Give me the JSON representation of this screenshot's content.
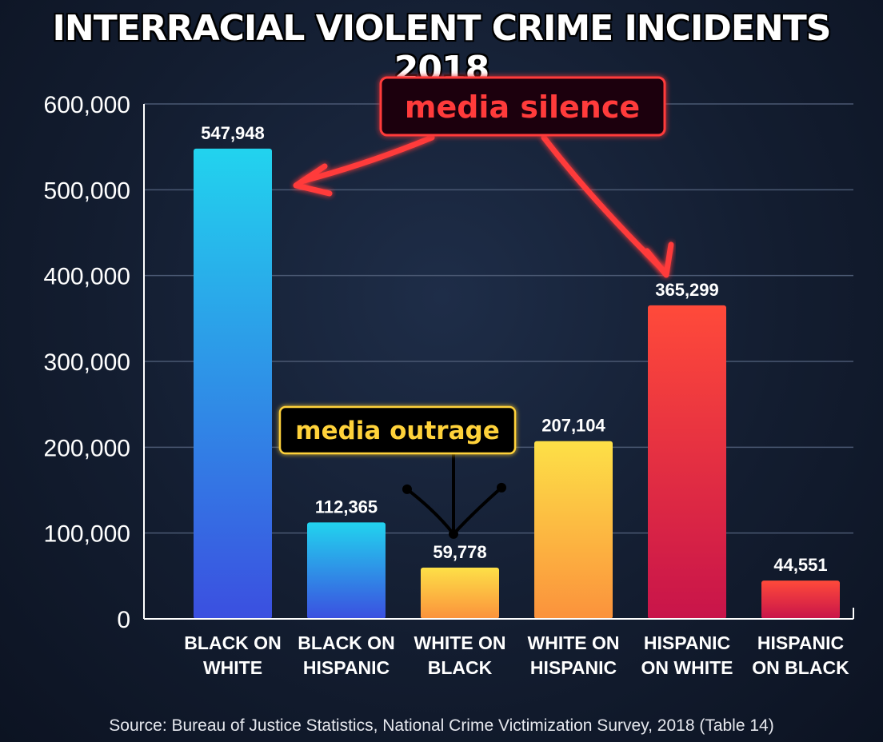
{
  "chart_data": {
    "type": "bar",
    "title": "INTERRACIAL VIOLENT CRIME INCIDENTS 2018",
    "categories": [
      [
        "BLACK ON",
        "WHITE"
      ],
      [
        "BLACK ON",
        "HISPANIC"
      ],
      [
        "WHITE ON",
        "BLACK"
      ],
      [
        "WHITE ON",
        "HISPANIC"
      ],
      [
        "HISPANIC",
        "ON WHITE"
      ],
      [
        "HISPANIC",
        "ON BLACK"
      ]
    ],
    "values": [
      547948,
      112365,
      59778,
      207104,
      365299,
      44551
    ],
    "value_labels": [
      "547,948",
      "112,365",
      "59,778",
      "207,104",
      "365,299",
      "44,551"
    ],
    "ylim": [
      0,
      600000
    ],
    "yticks": [
      0,
      100000,
      200000,
      300000,
      400000,
      500000,
      600000
    ],
    "ytick_labels": [
      "0",
      "100,000",
      "200,000",
      "300,000",
      "400,000",
      "500,000",
      "600,000"
    ],
    "xlabel": "",
    "ylabel": "",
    "grid": true,
    "legend": "none",
    "bar_colors": [
      [
        "#22d3ee",
        "#3b4fe0"
      ],
      [
        "#22d3ee",
        "#3b4fe0"
      ],
      [
        "#fde047",
        "#fb923c"
      ],
      [
        "#fde047",
        "#fb923c"
      ],
      [
        "#ff4a3a",
        "#c8144a"
      ],
      [
        "#ff4a3a",
        "#c8144a"
      ]
    ],
    "annotations": [
      {
        "text": "media silence",
        "color": "#ff3b3b",
        "points_to": [
          "BLACK ON WHITE",
          "HISPANIC ON WHITE"
        ]
      },
      {
        "text": "media outrage",
        "color": "#ffd23a",
        "points_to": [
          "WHITE ON BLACK"
        ]
      }
    ]
  },
  "source": "Source: Bureau of Justice Statistics, National Crime Victimization Survey, 2018 (Table 14)"
}
